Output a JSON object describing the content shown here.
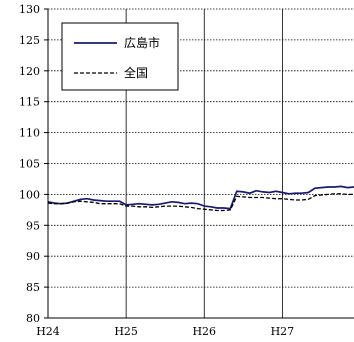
{
  "chart_data": {
    "type": "line",
    "title": "",
    "xlabel": "",
    "ylabel": "",
    "ylim": [
      80,
      130
    ],
    "xlim": [
      0,
      47
    ],
    "y_ticks": [
      80,
      85,
      90,
      95,
      100,
      105,
      110,
      115,
      120,
      125,
      130
    ],
    "x_tick_labels": [
      {
        "label": "H24",
        "x": 0
      },
      {
        "label": "H25",
        "x": 12
      },
      {
        "label": "H26",
        "x": 24
      },
      {
        "label": "H27",
        "x": 36
      }
    ],
    "x_vertical_grid": [
      12,
      24,
      36
    ],
    "grid": "horizontal dotted, vertical solid at year boundaries",
    "legend_placement": "top-left",
    "series": [
      {
        "name": "広島市",
        "color": "#1a1a6e",
        "style": "solid",
        "values": [
          98.8,
          98.6,
          98.5,
          98.6,
          98.9,
          99.2,
          99.3,
          99.1,
          99.0,
          98.9,
          98.9,
          98.9,
          98.3,
          98.4,
          98.5,
          98.4,
          98.3,
          98.4,
          98.6,
          98.8,
          98.7,
          98.5,
          98.6,
          98.5,
          98.1,
          98.0,
          97.8,
          97.8,
          97.7,
          100.5,
          100.4,
          100.2,
          100.6,
          100.4,
          100.3,
          100.5,
          100.3,
          100.1,
          100.2,
          100.2,
          100.3,
          101.0,
          101.1,
          101.2,
          101.2,
          101.3,
          101.1,
          101.2
        ]
      },
      {
        "name": "全国",
        "color": "#000000",
        "style": "dashed",
        "values": [
          98.6,
          98.5,
          98.5,
          98.6,
          98.8,
          98.9,
          98.8,
          98.7,
          98.5,
          98.5,
          98.5,
          98.5,
          98.1,
          98.1,
          98.0,
          98.0,
          97.9,
          98.0,
          98.1,
          98.1,
          98.1,
          98.0,
          97.9,
          97.7,
          97.6,
          97.5,
          97.4,
          97.4,
          97.5,
          99.7,
          99.6,
          99.5,
          99.5,
          99.5,
          99.4,
          99.3,
          99.3,
          99.2,
          99.1,
          99.1,
          99.2,
          99.8,
          99.9,
          100.0,
          100.1,
          100.1,
          100.0,
          100.0
        ]
      }
    ]
  }
}
